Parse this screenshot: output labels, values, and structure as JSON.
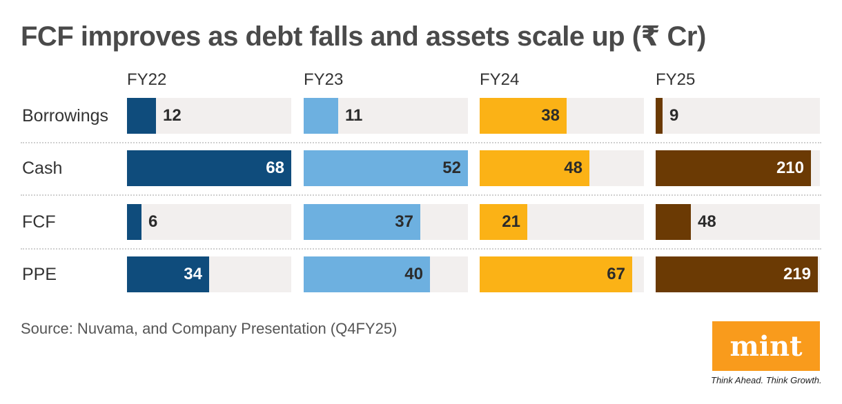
{
  "chart_data": {
    "type": "bar",
    "title": "FCF improves as debt falls and assets scale up (₹ Cr)",
    "categories": [
      "Borrowings",
      "Cash",
      "FCF",
      "PPE"
    ],
    "series": [
      {
        "name": "FY22",
        "color": "#0f4c7c",
        "values": [
          12,
          68,
          6,
          34
        ]
      },
      {
        "name": "FY23",
        "color": "#6db0e0",
        "values": [
          11,
          52,
          37,
          40
        ]
      },
      {
        "name": "FY24",
        "color": "#fbb216",
        "values": [
          38,
          48,
          21,
          67
        ]
      },
      {
        "name": "FY25",
        "color": "#6b3a04",
        "values": [
          9,
          210,
          48,
          219
        ]
      }
    ],
    "series_scale_max": [
      68,
      52,
      72,
      222
    ]
  },
  "source": "Source: Nuvama, and Company Presentation (Q4FY25)",
  "logo": {
    "text": "mint",
    "tagline": "Think Ahead. Think Growth."
  },
  "colors": {
    "track": "#f2efee",
    "label_dark": "#2b2b2b",
    "label_light": "#ffffff"
  }
}
